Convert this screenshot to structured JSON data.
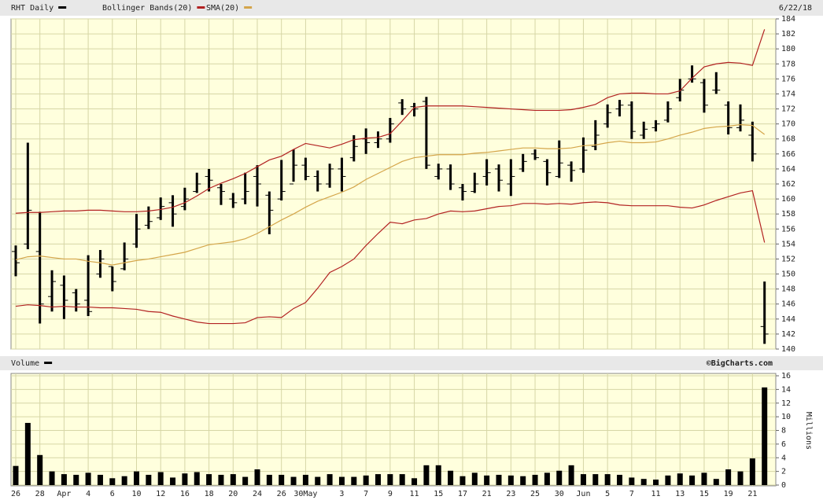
{
  "chart_data": [
    {
      "type": "ohlc",
      "date": "6/22/18",
      "ylim": [
        140,
        184
      ],
      "yticks": [
        140,
        142,
        144,
        146,
        148,
        150,
        152,
        154,
        156,
        158,
        160,
        162,
        164,
        166,
        168,
        170,
        172,
        174,
        176,
        178,
        180,
        182,
        184
      ],
      "grid": true,
      "series": [
        {
          "name": "RHT Daily",
          "color": "#000000",
          "open": [
            153,
            154,
            153,
            147,
            148.5,
            147.5,
            146.5,
            150,
            151,
            150.7,
            154,
            156.5,
            157.5,
            159.5,
            159,
            161,
            163,
            161.5,
            160,
            160,
            163,
            160.5,
            160,
            162,
            164.5,
            163,
            162,
            164,
            165.5,
            168,
            167.5,
            168,
            172.8,
            172.3,
            173,
            163,
            164,
            161.5,
            161,
            163,
            164,
            162,
            164,
            166,
            165,
            163,
            164.5,
            164,
            167,
            170,
            172,
            172.5,
            168.5,
            169.5,
            170.5,
            173.5,
            176,
            175.5,
            174.5,
            172.5,
            169.5,
            168.5,
            143
          ],
          "high": [
            153.8,
            167.5,
            158.3,
            150.5,
            149.8,
            148,
            152.5,
            153.2,
            151,
            154.2,
            158,
            159,
            160.2,
            160.5,
            161.5,
            163.5,
            164,
            162,
            160.8,
            163.5,
            164.5,
            161,
            165.2,
            166.6,
            165.5,
            163.8,
            164.7,
            165.5,
            168.5,
            169.4,
            169,
            170.8,
            173.3,
            172.8,
            173.6,
            164.7,
            164.6,
            162,
            163.5,
            165.3,
            164.6,
            165.3,
            166,
            166.6,
            165.3,
            167.8,
            165,
            168.2,
            170.5,
            172.6,
            173.2,
            173,
            170.3,
            170.5,
            173,
            176,
            177.8,
            176,
            176.9,
            173,
            172.6,
            170.3,
            149
          ],
          "low": [
            149.7,
            153.3,
            143.4,
            145,
            144,
            145,
            144.4,
            149.5,
            147.7,
            150.5,
            153.5,
            156,
            157.2,
            156.3,
            158.5,
            160.8,
            161,
            159.2,
            158.8,
            159.3,
            159,
            155.3,
            159.8,
            162.3,
            162.5,
            161,
            161.5,
            161,
            165,
            166,
            166.8,
            167.5,
            171.2,
            171,
            164,
            162.6,
            161.2,
            159.8,
            160.8,
            161.8,
            161,
            160.4,
            163.6,
            165.2,
            161.8,
            162.8,
            162.3,
            163.5,
            166.5,
            169.5,
            171,
            168,
            168,
            169,
            170.2,
            173,
            175.5,
            171.5,
            174,
            168.6,
            169,
            165,
            140.7
          ],
          "close": [
            151.5,
            158.5,
            146,
            149,
            146.5,
            146,
            145,
            152,
            149,
            152,
            156,
            157,
            159,
            158,
            160,
            162,
            162.5,
            161,
            159.5,
            161,
            162,
            158.5,
            161,
            164.5,
            163,
            162,
            164,
            163,
            167,
            167.5,
            168,
            170,
            172,
            172,
            164.5,
            164,
            162,
            161,
            162,
            163.5,
            162.5,
            163,
            165,
            165.5,
            163.5,
            164.8,
            163.8,
            166.5,
            168.5,
            171.5,
            172.5,
            169,
            169.3,
            170,
            172,
            174.5,
            176,
            172.5,
            174.5,
            169.5,
            170.5,
            166,
            142
          ]
        },
        {
          "name": "Bollinger Bands(20)",
          "color": "#b22222",
          "upper": [
            158.1,
            158.2,
            158.2,
            158.3,
            158.4,
            158.4,
            158.5,
            158.5,
            158.4,
            158.3,
            158.3,
            158.4,
            158.6,
            158.9,
            159.5,
            160.4,
            161.4,
            162.1,
            162.7,
            163.4,
            164.3,
            165.2,
            165.7,
            166.6,
            167.4,
            167.1,
            166.8,
            167.3,
            167.9,
            168.1,
            168.2,
            168.7,
            170.4,
            172.2,
            172.4,
            172.4,
            172.4,
            172.4,
            172.3,
            172.2,
            172.1,
            172.0,
            171.9,
            171.8,
            171.8,
            171.8,
            171.9,
            172.2,
            172.6,
            173.5,
            174.0,
            174.1,
            174.1,
            174.0,
            174.0,
            174.4,
            176.1,
            177.6,
            178.0,
            178.2,
            178.1,
            177.8,
            182.6
          ],
          "lower": [
            145.7,
            145.9,
            145.8,
            145.6,
            145.7,
            145.6,
            145.6,
            145.5,
            145.5,
            145.4,
            145.3,
            145.0,
            144.9,
            144.4,
            144.0,
            143.6,
            143.4,
            143.4,
            143.4,
            143.5,
            144.2,
            144.3,
            144.2,
            145.4,
            146.2,
            148.1,
            150.2,
            151.0,
            152.0,
            153.8,
            155.4,
            156.9,
            156.7,
            157.2,
            157.4,
            158.0,
            158.4,
            158.3,
            158.4,
            158.7,
            159.0,
            159.1,
            159.4,
            159.4,
            159.3,
            159.4,
            159.3,
            159.5,
            159.6,
            159.5,
            159.2,
            159.1,
            159.1,
            159.1,
            159.1,
            158.9,
            158.8,
            159.2,
            159.8,
            160.3,
            160.8,
            161.1,
            154.2
          ]
        },
        {
          "name": "SMA(20)",
          "color": "#d4a54a",
          "values": [
            151.9,
            152.3,
            152.4,
            152.2,
            152.0,
            152.0,
            151.7,
            151.5,
            151.2,
            151.5,
            151.8,
            152.0,
            152.3,
            152.6,
            152.9,
            153.4,
            153.9,
            154.1,
            154.3,
            154.7,
            155.4,
            156.3,
            157.2,
            158.0,
            158.9,
            159.7,
            160.3,
            160.9,
            161.6,
            162.6,
            163.4,
            164.2,
            165.0,
            165.5,
            165.7,
            165.9,
            165.9,
            165.9,
            166.1,
            166.2,
            166.4,
            166.6,
            166.8,
            166.8,
            166.7,
            166.7,
            166.8,
            167.1,
            167.2,
            167.5,
            167.7,
            167.5,
            167.5,
            167.6,
            168.0,
            168.5,
            168.9,
            169.4,
            169.6,
            169.7,
            169.9,
            169.8,
            168.6
          ]
        }
      ]
    },
    {
      "type": "bar",
      "source": "©BigCharts.com",
      "ylabel": "Millions",
      "categories": [
        "26",
        null,
        "28",
        null,
        "Apr",
        null,
        "4",
        null,
        "6",
        null,
        "10",
        null,
        "12",
        null,
        "16",
        null,
        "18",
        null,
        "20",
        null,
        "24",
        null,
        "26",
        null,
        "30May",
        null,
        null,
        "3",
        null,
        "7",
        null,
        "9",
        null,
        "11",
        null,
        "15",
        null,
        "17",
        null,
        "21",
        null,
        "23",
        null,
        "25",
        null,
        "30",
        null,
        "Jun",
        null,
        "5",
        null,
        "7",
        null,
        "11",
        null,
        "13",
        null,
        "15",
        null,
        "19",
        null,
        "21",
        null
      ],
      "ylim": [
        0,
        16
      ],
      "yticks": [
        0,
        2,
        4,
        6,
        8,
        10,
        12,
        14,
        16
      ],
      "grid": true,
      "series": [
        {
          "name": "Volume",
          "color": "#000000",
          "values": [
            2.8,
            9.1,
            4.4,
            2.0,
            1.6,
            1.5,
            1.8,
            1.5,
            1.0,
            1.3,
            2.0,
            1.5,
            1.9,
            1.1,
            1.7,
            1.9,
            1.6,
            1.5,
            1.6,
            1.2,
            2.3,
            1.5,
            1.5,
            1.2,
            1.5,
            1.2,
            1.6,
            1.2,
            1.2,
            1.4,
            1.6,
            1.6,
            1.6,
            1.0,
            2.9,
            2.9,
            2.1,
            1.3,
            1.8,
            1.4,
            1.5,
            1.4,
            1.3,
            1.5,
            1.8,
            2.1,
            2.9,
            1.6,
            1.6,
            1.6,
            1.5,
            1.1,
            0.9,
            0.8,
            1.4,
            1.7,
            1.4,
            1.8,
            0.9,
            2.3,
            2.0,
            3.9,
            14.3
          ]
        }
      ]
    }
  ]
}
